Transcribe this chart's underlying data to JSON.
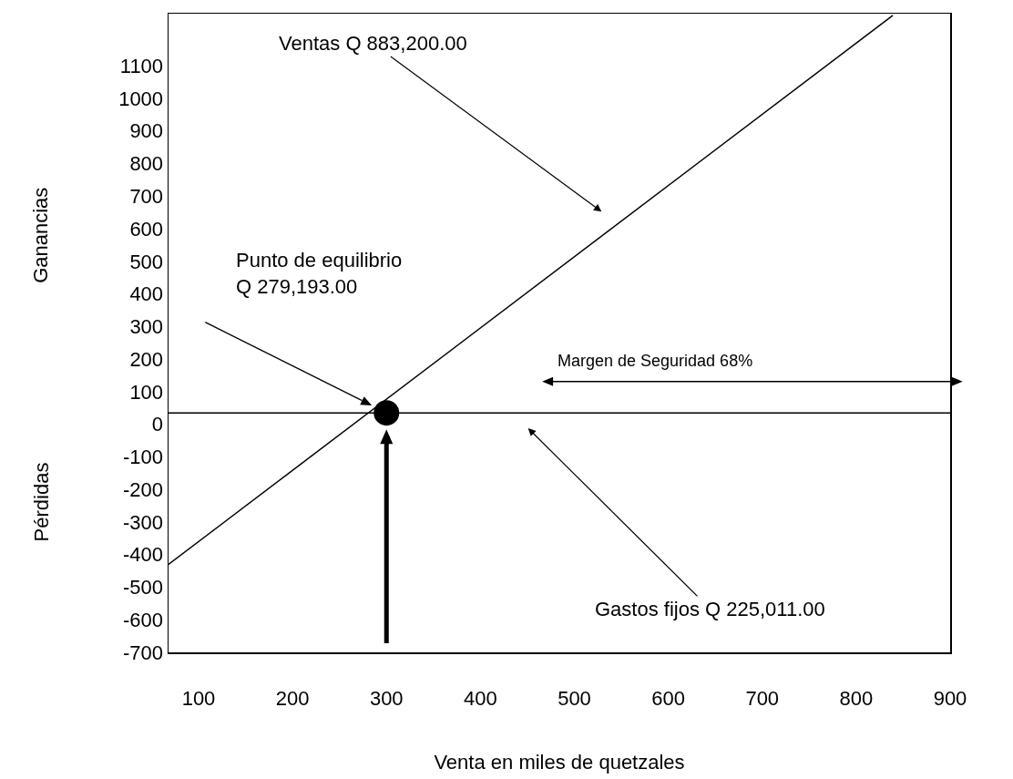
{
  "chart_data": {
    "type": "line",
    "xlabel": "Venta en miles de quetzales",
    "xlim": [
      68,
      900
    ],
    "xticks": [
      100,
      200,
      300,
      400,
      500,
      600,
      700,
      800,
      900
    ],
    "ylim": [
      -700,
      1260
    ],
    "yticks": [
      -700,
      -600,
      -500,
      -400,
      -300,
      -200,
      -100,
      0,
      100,
      200,
      300,
      400,
      500,
      600,
      700,
      800,
      900,
      1000,
      1100
    ],
    "grid": false,
    "line_style": "solid",
    "series": [
      {
        "color": "#000000",
        "x": [
          68,
          839
        ],
        "values": [
          -430,
          1255
        ]
      },
      {
        "type": "scatter",
        "color": "#000000",
        "x": [
          300
        ],
        "values": [
          35
        ]
      }
    ],
    "ref_lines": [
      {
        "axis": "y",
        "value": 35,
        "color": "#000000"
      }
    ],
    "annotations": [
      "Ventas Q 883,200.00",
      "Punto de equilibrio\nQ 279,193.00",
      "Gastos fijos Q 225,011.00",
      "Margen de Seguridad 68%",
      "Ganancias",
      "Pérdidas"
    ]
  }
}
